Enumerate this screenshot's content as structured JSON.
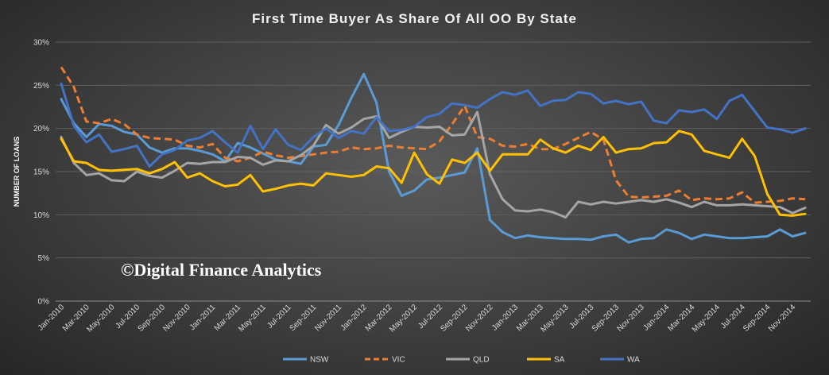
{
  "chart_data": {
    "type": "line",
    "title": "First Time Buyer As Share Of All OO By State",
    "ylabel": "NUMBER OF LOANS",
    "xlabel": "",
    "ylim": [
      0,
      30
    ],
    "yticks": [
      "0%",
      "5%",
      "10%",
      "15%",
      "20%",
      "25%",
      "30%"
    ],
    "xtick_labels": [
      "Jan-2010",
      "Mar-2010",
      "May-2010",
      "Jul-2010",
      "Sep-2010",
      "Nov-2010",
      "Jan-2011",
      "Mar-2011",
      "May-2011",
      "Jul-2011",
      "Sep-2011",
      "Nov-2011",
      "Jan-2012",
      "Mar-2012",
      "May-2012",
      "Jul-2012",
      "Sep-2012",
      "Nov-2012",
      "Jan-2013",
      "Mar-2013",
      "May-2013",
      "Jul-2013",
      "Sep-2013",
      "Nov-2013",
      "Jan-2014",
      "Mar-2014",
      "May-2014",
      "Jul-2014",
      "Sep-2014",
      "Nov-2014"
    ],
    "x": [
      "Jan-2010",
      "Feb-2010",
      "Mar-2010",
      "Apr-2010",
      "May-2010",
      "Jun-2010",
      "Jul-2010",
      "Aug-2010",
      "Sep-2010",
      "Oct-2010",
      "Nov-2010",
      "Dec-2010",
      "Jan-2011",
      "Feb-2011",
      "Mar-2011",
      "Apr-2011",
      "May-2011",
      "Jun-2011",
      "Jul-2011",
      "Aug-2011",
      "Sep-2011",
      "Oct-2011",
      "Nov-2011",
      "Dec-2011",
      "Jan-2012",
      "Feb-2012",
      "Mar-2012",
      "Apr-2012",
      "May-2012",
      "Jun-2012",
      "Jul-2012",
      "Aug-2012",
      "Sep-2012",
      "Oct-2012",
      "Nov-2012",
      "Dec-2012",
      "Jan-2013",
      "Feb-2013",
      "Mar-2013",
      "Apr-2013",
      "May-2013",
      "Jun-2013",
      "Jul-2013",
      "Aug-2013",
      "Sep-2013",
      "Oct-2013",
      "Nov-2013",
      "Dec-2013",
      "Jan-2014",
      "Feb-2014",
      "Mar-2014",
      "Apr-2014",
      "May-2014",
      "Jun-2014",
      "Jul-2014",
      "Aug-2014",
      "Sep-2014",
      "Oct-2014",
      "Nov-2014",
      "Dec-2014"
    ],
    "series": [
      {
        "name": "NSW",
        "color": "#5b9bd5",
        "dash": "solid",
        "values": [
          23.4,
          20.6,
          19.0,
          20.5,
          20.3,
          19.6,
          19.3,
          17.8,
          17.2,
          17.7,
          17.7,
          17.4,
          17.0,
          16.2,
          18.3,
          17.8,
          17.1,
          16.4,
          16.2,
          15.9,
          17.9,
          18.1,
          20.4,
          23.5,
          26.3,
          23.0,
          15.0,
          12.2,
          12.8,
          14.1,
          14.3,
          14.6,
          14.9,
          17.7,
          9.4,
          8.0,
          7.3,
          7.6,
          7.4,
          7.3,
          7.2,
          7.2,
          7.1,
          7.5,
          7.7,
          6.8,
          7.2,
          7.3,
          8.3,
          7.9,
          7.2,
          7.7,
          7.5,
          7.3,
          7.3,
          7.4,
          7.5,
          8.3,
          7.5,
          7.9
        ]
      },
      {
        "name": "VIC",
        "color": "#ed7d31",
        "dash": "dashed",
        "values": [
          27.1,
          24.8,
          20.8,
          20.6,
          21.1,
          20.5,
          19.3,
          18.9,
          18.8,
          18.7,
          18.0,
          17.8,
          18.2,
          16.6,
          16.2,
          16.6,
          17.3,
          16.9,
          16.6,
          16.8,
          17.0,
          17.2,
          17.3,
          17.8,
          17.6,
          17.7,
          18.0,
          17.8,
          17.7,
          17.6,
          18.5,
          20.5,
          22.6,
          19.0,
          18.8,
          18.0,
          17.9,
          18.2,
          17.6,
          17.6,
          18.2,
          18.9,
          19.6,
          18.7,
          14.0,
          12.1,
          12.0,
          12.1,
          12.2,
          12.8,
          11.7,
          11.9,
          11.8,
          11.9,
          12.6,
          11.4,
          11.5,
          11.6,
          11.9,
          11.8
        ]
      },
      {
        "name": "QLD",
        "color": "#a5a5a5",
        "dash": "solid",
        "values": [
          19.0,
          16.0,
          14.6,
          14.8,
          14.0,
          13.9,
          15.0,
          14.5,
          14.3,
          15.1,
          16.0,
          15.9,
          16.1,
          16.1,
          16.7,
          16.6,
          15.8,
          16.3,
          16.2,
          16.9,
          18.0,
          20.4,
          19.4,
          20.1,
          21.1,
          21.4,
          18.9,
          19.6,
          20.2,
          20.1,
          20.2,
          19.2,
          19.3,
          21.9,
          14.7,
          11.8,
          10.5,
          10.4,
          10.6,
          10.3,
          9.7,
          11.5,
          11.2,
          11.5,
          11.3,
          11.5,
          11.7,
          11.5,
          11.8,
          11.4,
          10.9,
          11.5,
          11.1,
          11.1,
          11.2,
          11.1,
          11.0,
          10.9,
          10.2,
          10.8
        ]
      },
      {
        "name": "SA",
        "color": "#ffc000",
        "dash": "solid",
        "values": [
          18.8,
          16.2,
          16.0,
          15.2,
          15.1,
          15.2,
          15.3,
          14.8,
          15.3,
          16.1,
          14.3,
          14.8,
          13.9,
          13.3,
          13.5,
          14.6,
          12.7,
          13.0,
          13.4,
          13.6,
          13.4,
          14.8,
          14.6,
          14.4,
          14.6,
          15.6,
          15.4,
          13.7,
          17.2,
          14.7,
          13.6,
          16.4,
          16.0,
          17.2,
          15.1,
          17.0,
          17.0,
          17.0,
          18.7,
          17.7,
          17.2,
          18.0,
          17.5,
          19.0,
          17.2,
          17.6,
          17.7,
          18.3,
          18.4,
          19.7,
          19.3,
          17.4,
          17.0,
          16.6,
          18.8,
          16.8,
          12.4,
          10.0,
          9.9,
          10.1
        ]
      },
      {
        "name": "WA",
        "color": "#4472c4",
        "dash": "solid",
        "values": [
          25.2,
          20.3,
          18.4,
          19.3,
          17.3,
          17.6,
          18.0,
          15.6,
          17.0,
          17.5,
          18.6,
          18.9,
          19.7,
          18.4,
          17.2,
          20.3,
          17.6,
          19.9,
          18.1,
          17.5,
          19.0,
          20.0,
          18.9,
          19.7,
          19.4,
          21.3,
          19.7,
          19.8,
          20.2,
          21.3,
          21.7,
          22.9,
          22.7,
          22.4,
          23.4,
          24.2,
          23.9,
          24.4,
          22.6,
          23.2,
          23.3,
          24.2,
          24.0,
          22.9,
          23.2,
          22.8,
          23.1,
          20.9,
          20.6,
          22.1,
          21.9,
          22.2,
          21.1,
          23.2,
          23.9,
          22.0,
          20.1,
          19.9,
          19.5,
          20.0
        ]
      }
    ],
    "grid": true,
    "legend_position": "bottom",
    "watermark": "©Digital Finance Analytics"
  }
}
